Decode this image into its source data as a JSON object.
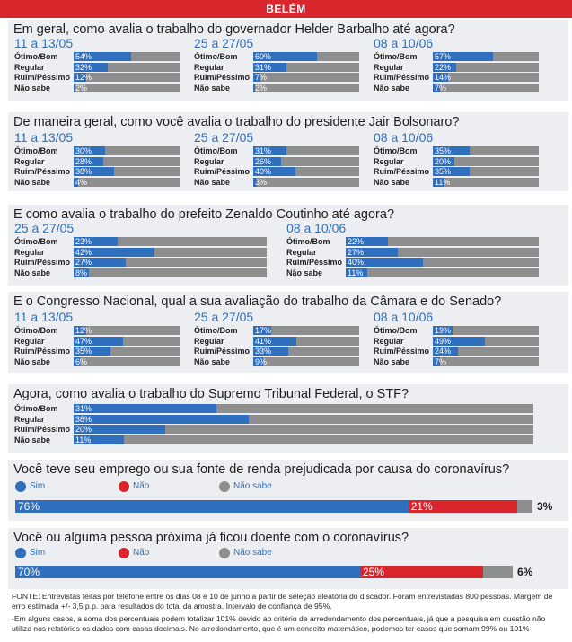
{
  "header": "BELÉM",
  "chart_data": [
    {
      "type": "bar",
      "title": "Em geral, como avalia o trabalho do governador Helder Barbalho até agora?",
      "categories": [
        "Ótimo/Bom",
        "Regular",
        "Ruim/Péssimo",
        "Não sabe"
      ],
      "periods": [
        {
          "label": "11 a 13/05",
          "values": [
            54,
            32,
            12,
            2
          ]
        },
        {
          "label": "25 a 27/05",
          "values": [
            60,
            31,
            7,
            2
          ]
        },
        {
          "label": "08 a 10/06",
          "values": [
            57,
            22,
            14,
            7
          ]
        }
      ]
    },
    {
      "type": "bar",
      "title": "De maneira geral, como você avalia o trabalho do presidente Jair Bolsonaro?",
      "categories": [
        "Ótimo/Bom",
        "Regular",
        "Ruim/Péssimo",
        "Não sabe"
      ],
      "periods": [
        {
          "label": "11 a 13/05",
          "values": [
            30,
            28,
            38,
            4
          ]
        },
        {
          "label": "25 a 27/05",
          "values": [
            31,
            26,
            40,
            3
          ]
        },
        {
          "label": "08 a 10/06",
          "values": [
            35,
            20,
            35,
            11
          ]
        }
      ]
    },
    {
      "type": "bar",
      "title": "E como avalia o trabalho do prefeito Zenaldo Coutinho até agora?",
      "categories": [
        "Ótimo/Bom",
        "Regular",
        "Ruim/Péssimo",
        "Não sabe"
      ],
      "periods": [
        {
          "label": "25 a 27/05",
          "values": [
            23,
            42,
            27,
            8
          ]
        },
        {
          "label": "08 a 10/06",
          "values": [
            22,
            27,
            40,
            11
          ]
        }
      ]
    },
    {
      "type": "bar",
      "title": "E o Congresso Nacional, qual a sua avaliação do trabalho da Câmara e do Senado?",
      "categories": [
        "Ótimo/Bom",
        "Regular",
        "Ruim/Péssimo",
        "Não sabe"
      ],
      "periods": [
        {
          "label": "11 a 13/05",
          "values": [
            12,
            47,
            35,
            6
          ]
        },
        {
          "label": "25 a 27/05",
          "values": [
            17,
            41,
            33,
            9
          ]
        },
        {
          "label": "08 a 10/06",
          "values": [
            19,
            49,
            24,
            7
          ]
        }
      ]
    },
    {
      "type": "bar",
      "title": "Agora, como avalia o trabalho do Supremo Tribunal Federal, o STF?",
      "categories": [
        "Ótimo/Bom",
        "Regular",
        "Ruim/Péssimo",
        "Não sabe"
      ],
      "periods": [
        {
          "label": "",
          "values": [
            31,
            38,
            20,
            11
          ]
        }
      ]
    },
    {
      "type": "bar",
      "stacked": true,
      "title": "Você teve seu emprego ou sua fonte de renda prejudicada por causa do coronavírus?",
      "series": [
        {
          "name": "Sim",
          "values": [
            76
          ]
        },
        {
          "name": "Não",
          "values": [
            21
          ]
        },
        {
          "name": "Não sabe",
          "values": [
            3
          ]
        }
      ]
    },
    {
      "type": "bar",
      "stacked": true,
      "title": "Você ou alguma pessoa próxima já ficou doente com o coronavírus?",
      "series": [
        {
          "name": "Sim",
          "values": [
            70
          ]
        },
        {
          "name": "Não",
          "values": [
            25
          ]
        },
        {
          "name": "Não sabe",
          "values": [
            6
          ]
        }
      ]
    }
  ],
  "colors": {
    "header": "#d8262c",
    "blue": "#2f6fbd",
    "red": "#d8262c",
    "gray": "#8e8e8e",
    "block_bg": "#eceef1"
  },
  "footer": {
    "line1": "FONTE: Entrevistas feitas por telefone entre os dias 08 e 10 de junho a partir de seleção aleatória do discador. Foram entrevistadas 800 pessoas. Margem de erro estimada +/- 3,5 p.p. para resultados do total da amostra. Intervalo de confiança de 95%.",
    "line2": "-Em alguns casos, a soma dos percentuais podem totalizar 101% devido ao critério de arredondamento dos percentuais, já que a pesquisa em questão não utiliza nos relatórios os dados com casas decimais. No arredondamento, que é um conceito matemático, podemos ter casos que somam 99% ou 101%"
  }
}
